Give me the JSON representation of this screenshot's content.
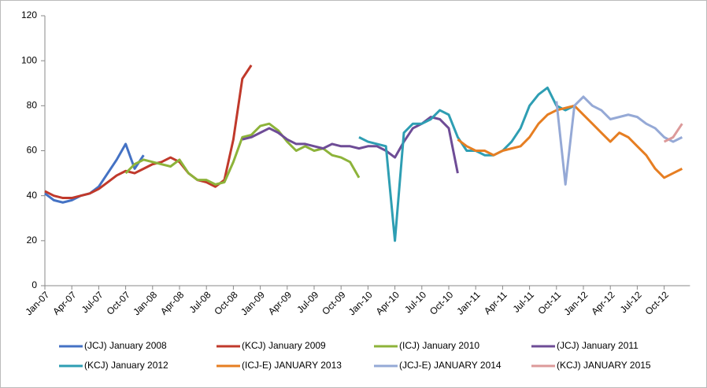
{
  "chart_data": {
    "type": "line",
    "categories": [
      "Jan-07",
      null,
      null,
      "Apr-07",
      null,
      null,
      "Jul-07",
      null,
      null,
      "Oct-07",
      null,
      null,
      "Jan-08",
      null,
      null,
      "Apr-08",
      null,
      null,
      "Jul-08",
      null,
      null,
      "Oct-08",
      null,
      null,
      "Jan-09",
      null,
      null,
      "Apr-09",
      null,
      null,
      "Jul-09",
      null,
      null,
      "Oct-09",
      null,
      null,
      "Jan-10",
      null,
      null,
      "Apr-10",
      null,
      null,
      "Jul-10",
      null,
      null,
      "Oct-10",
      null,
      null,
      "Jan-11",
      null,
      null,
      "Apr-11",
      null,
      null,
      "Jul-11",
      null,
      null,
      "Oct-11",
      null,
      null,
      "Jan-12",
      null,
      null,
      "Apr-12",
      null,
      null,
      "Jul-12",
      null,
      null,
      "Oct-12",
      null,
      null
    ],
    "ylim": [
      0,
      120
    ],
    "yticks": [
      0,
      20,
      40,
      60,
      80,
      100,
      120
    ],
    "grid": false,
    "series": [
      {
        "name": "(JCJ) January 2008",
        "color": "#4472c4",
        "values": [
          41,
          38,
          37,
          38,
          40,
          41,
          44,
          50,
          56,
          63,
          52,
          58,
          null,
          null,
          null,
          null,
          null,
          null,
          null,
          null,
          null,
          null,
          null,
          null,
          null,
          null,
          null,
          null,
          null,
          null,
          null,
          null,
          null,
          null,
          null,
          null,
          null,
          null,
          null,
          null,
          null,
          null,
          null,
          null,
          null,
          null,
          null,
          null,
          null,
          null,
          null,
          null,
          null,
          null,
          null,
          null,
          null,
          null,
          null,
          null,
          null,
          null,
          null,
          null,
          null,
          null,
          null,
          null,
          null,
          null,
          null,
          null
        ]
      },
      {
        "name": "(KCJ) January 2009",
        "color": "#c0392b",
        "values": [
          42,
          40,
          39,
          39,
          40,
          41,
          43,
          46,
          49,
          51,
          50,
          52,
          54,
          55,
          57,
          55,
          50,
          47,
          46,
          44,
          47,
          65,
          92,
          98,
          null,
          null,
          null,
          null,
          null,
          null,
          null,
          null,
          null,
          null,
          null,
          null,
          null,
          null,
          null,
          null,
          null,
          null,
          null,
          null,
          null,
          null,
          null,
          null,
          null,
          null,
          null,
          null,
          null,
          null,
          null,
          null,
          null,
          null,
          null,
          null,
          null,
          null,
          null,
          null,
          null,
          null,
          null,
          null,
          null,
          null,
          null,
          null
        ]
      },
      {
        "name": "(ICJ) January 2010",
        "color": "#8db33a",
        "values": [
          null,
          null,
          null,
          null,
          null,
          null,
          null,
          null,
          null,
          50,
          54,
          56,
          55,
          54,
          53,
          56,
          50,
          47,
          47,
          45,
          46,
          55,
          66,
          67,
          71,
          72,
          69,
          64,
          60,
          62,
          60,
          61,
          58,
          57,
          55,
          48,
          null,
          null,
          null,
          null,
          null,
          null,
          null,
          null,
          null,
          null,
          null,
          null,
          null,
          null,
          null,
          null,
          null,
          null,
          null,
          null,
          null,
          null,
          null,
          null,
          null,
          null,
          null,
          null,
          null,
          null,
          null,
          null,
          null,
          null,
          null,
          null
        ]
      },
      {
        "name": "(JCJ) January 2011",
        "color": "#6e4c96",
        "values": [
          null,
          null,
          null,
          null,
          null,
          null,
          null,
          null,
          null,
          null,
          null,
          null,
          null,
          null,
          null,
          null,
          null,
          null,
          null,
          null,
          null,
          null,
          65,
          66,
          68,
          70,
          68,
          65,
          63,
          63,
          62,
          61,
          63,
          62,
          62,
          61,
          62,
          62,
          60,
          57,
          64,
          70,
          72,
          75,
          74,
          70,
          50,
          null,
          null,
          null,
          null,
          null,
          null,
          null,
          null,
          null,
          null,
          null,
          null,
          null,
          null,
          null,
          null,
          null,
          null,
          null,
          null,
          null,
          null,
          null,
          null,
          null
        ]
      },
      {
        "name": "(KCJ) January 2012",
        "color": "#2e9eb3",
        "values": [
          null,
          null,
          null,
          null,
          null,
          null,
          null,
          null,
          null,
          null,
          null,
          null,
          null,
          null,
          null,
          null,
          null,
          null,
          null,
          null,
          null,
          null,
          null,
          null,
          null,
          null,
          null,
          null,
          null,
          null,
          null,
          null,
          null,
          null,
          null,
          66,
          64,
          63,
          62,
          20,
          68,
          72,
          72,
          74,
          78,
          76,
          66,
          60,
          60,
          58,
          58,
          60,
          64,
          70,
          80,
          85,
          88,
          80,
          78,
          80,
          null,
          null,
          null,
          null,
          null,
          null,
          null,
          null,
          null,
          null,
          null,
          null
        ]
      },
      {
        "name": "(ICJ-E) JANUARY 2013",
        "color": "#e67e22",
        "values": [
          null,
          null,
          null,
          null,
          null,
          null,
          null,
          null,
          null,
          null,
          null,
          null,
          null,
          null,
          null,
          null,
          null,
          null,
          null,
          null,
          null,
          null,
          null,
          null,
          null,
          null,
          null,
          null,
          null,
          null,
          null,
          null,
          null,
          null,
          null,
          null,
          null,
          null,
          null,
          null,
          null,
          null,
          null,
          null,
          null,
          null,
          65,
          62,
          60,
          60,
          58,
          60,
          61,
          62,
          66,
          72,
          76,
          78,
          79,
          80,
          76,
          72,
          68,
          64,
          68,
          66,
          62,
          58,
          52,
          48,
          50,
          52
        ]
      },
      {
        "name": "(JCJ-E) JANUARY 2014",
        "color": "#95a9d6",
        "values": [
          null,
          null,
          null,
          null,
          null,
          null,
          null,
          null,
          null,
          null,
          null,
          null,
          null,
          null,
          null,
          null,
          null,
          null,
          null,
          null,
          null,
          null,
          null,
          null,
          null,
          null,
          null,
          null,
          null,
          null,
          null,
          null,
          null,
          null,
          null,
          null,
          null,
          null,
          null,
          null,
          null,
          null,
          null,
          null,
          null,
          null,
          null,
          null,
          null,
          null,
          null,
          null,
          null,
          null,
          null,
          null,
          null,
          82,
          45,
          80,
          84,
          80,
          78,
          74,
          75,
          76,
          75,
          72,
          70,
          66,
          64,
          66
        ]
      },
      {
        "name": "(KCJ) JANUARY 2015",
        "color": "#dc9a9a",
        "values": [
          null,
          null,
          null,
          null,
          null,
          null,
          null,
          null,
          null,
          null,
          null,
          null,
          null,
          null,
          null,
          null,
          null,
          null,
          null,
          null,
          null,
          null,
          null,
          null,
          null,
          null,
          null,
          null,
          null,
          null,
          null,
          null,
          null,
          null,
          null,
          null,
          null,
          null,
          null,
          null,
          null,
          null,
          null,
          null,
          null,
          null,
          null,
          null,
          null,
          null,
          null,
          null,
          null,
          null,
          null,
          null,
          null,
          null,
          null,
          null,
          null,
          null,
          null,
          null,
          null,
          null,
          null,
          null,
          null,
          64,
          66,
          72
        ]
      }
    ]
  }
}
